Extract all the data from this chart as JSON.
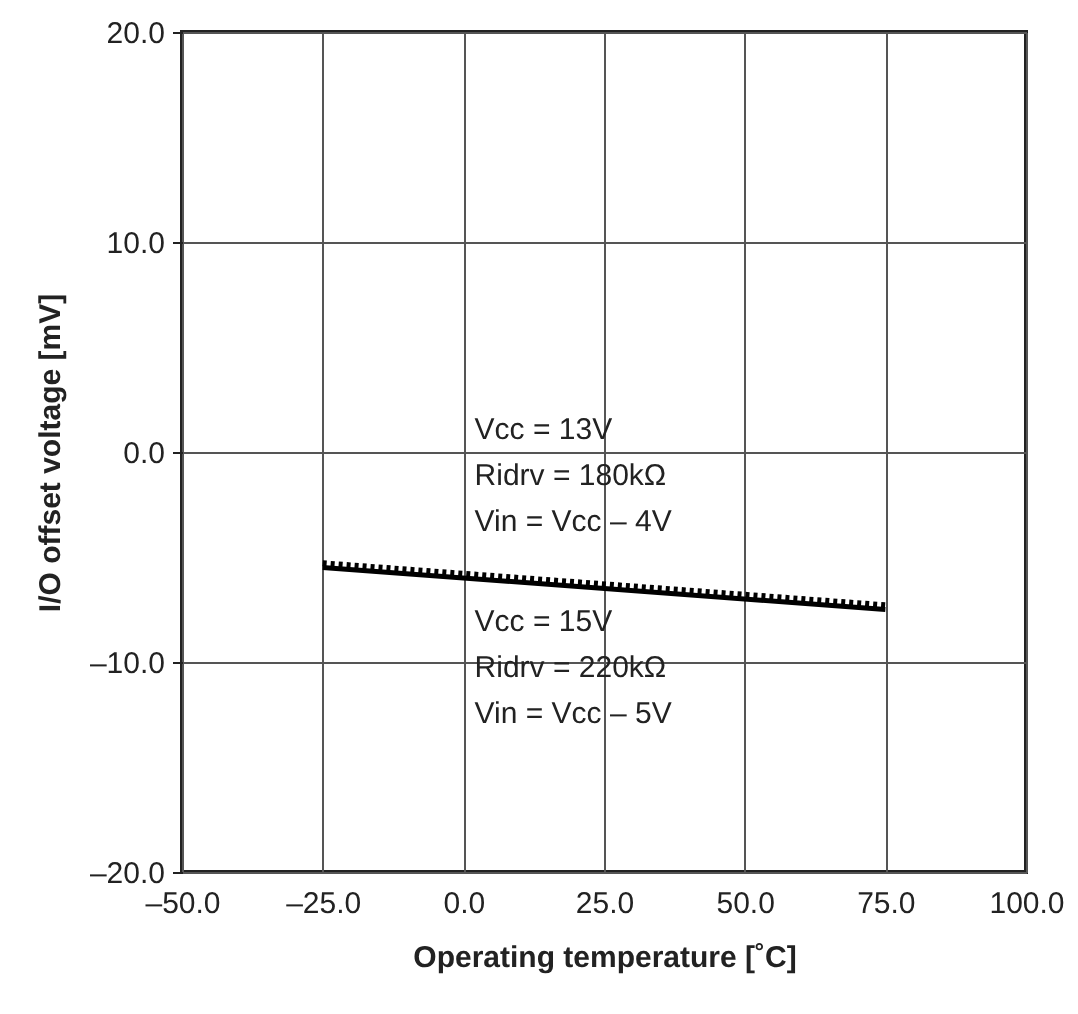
{
  "chart_data": {
    "type": "line",
    "xlabel": "Operating temperature [˚C]",
    "ylabel": "I/O offset voltage [mV]",
    "x": [
      -25,
      75
    ],
    "series": [
      {
        "name": "Vcc = 13V\nRidrv = 180kΩ\nVin = Vcc – 4V",
        "color": "#000000",
        "line_style": "dotted",
        "values": [
          -5.3,
          -7.3
        ]
      },
      {
        "name": "Vcc = 15V\nRidrv = 220kΩ\nVin = Vcc – 5V",
        "color": "#000000",
        "line_style": "solid",
        "values": [
          -5.5,
          -7.5
        ]
      }
    ],
    "xlim": [
      -50,
      100
    ],
    "xticks": [
      {
        "value": -50,
        "label": "–50.0"
      },
      {
        "value": -25,
        "label": "–25.0"
      },
      {
        "value": 0,
        "label": "0.0"
      },
      {
        "value": 25,
        "label": "25.0"
      },
      {
        "value": 50,
        "label": "50.0"
      },
      {
        "value": 75,
        "label": "75.0"
      },
      {
        "value": 100,
        "label": "100.0"
      }
    ],
    "ylim": [
      -20,
      20
    ],
    "yticks": [
      {
        "value": -20,
        "label": "–20.0"
      },
      {
        "value": -10,
        "label": "–10.0"
      },
      {
        "value": 0,
        "label": "0.0"
      },
      {
        "value": 10,
        "label": "10.0"
      },
      {
        "value": 20,
        "label": "20.0"
      }
    ],
    "grid": true,
    "legend": false,
    "marker": "none"
  }
}
